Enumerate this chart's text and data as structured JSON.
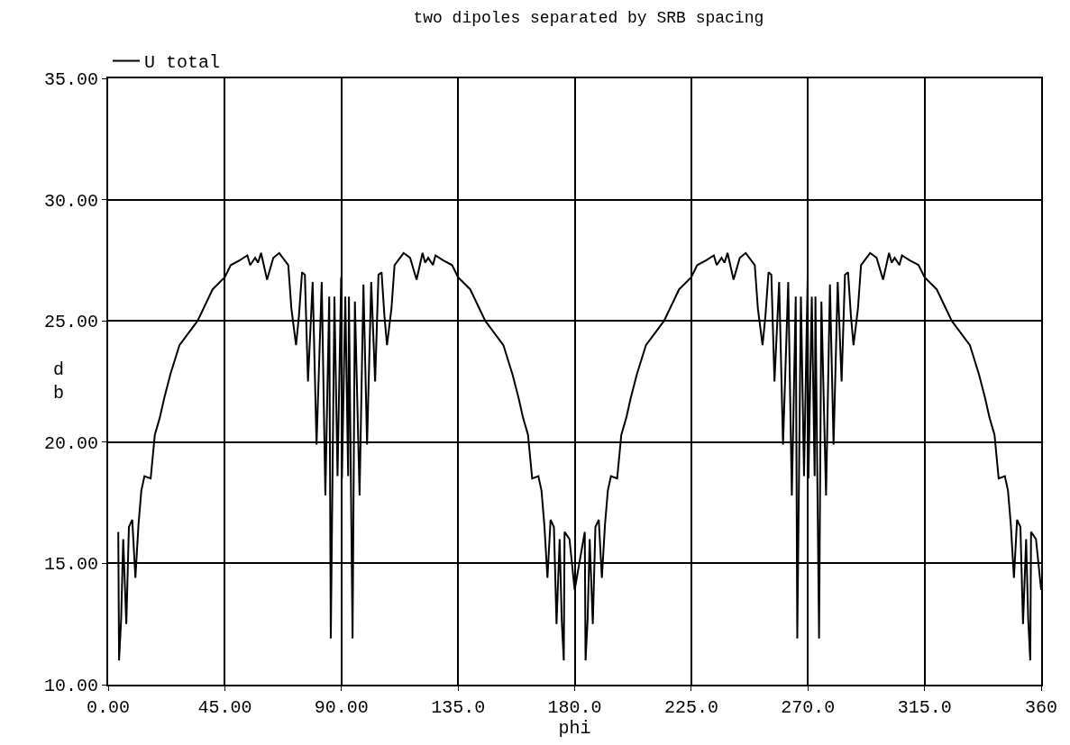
{
  "chart_data": {
    "type": "line",
    "title": "two dipoles separated by SRB spacing",
    "xlabel": "phi",
    "ylabel": "db",
    "xlim": [
      0,
      360
    ],
    "ylim": [
      10,
      35
    ],
    "xticks": [
      {
        "value": 0,
        "label": "0.00"
      },
      {
        "value": 45,
        "label": "45.00"
      },
      {
        "value": 90,
        "label": "90.00"
      },
      {
        "value": 135,
        "label": "135.0"
      },
      {
        "value": 180,
        "label": "180.0"
      },
      {
        "value": 225,
        "label": "225.0"
      },
      {
        "value": 270,
        "label": "270.0"
      },
      {
        "value": 315,
        "label": "315.0"
      },
      360
    ],
    "yticks": [
      {
        "value": 10,
        "label": "10.00"
      },
      {
        "value": 15,
        "label": "15.00"
      },
      {
        "value": 20,
        "label": "20.00"
      },
      {
        "value": 25,
        "label": "25.00"
      },
      {
        "value": 30,
        "label": "30.00"
      },
      {
        "value": 35,
        "label": "35.00"
      }
    ],
    "grid": true,
    "legend": "top left",
    "marker": "none",
    "line_style": "solid",
    "x": [
      3.9,
      4.2,
      5,
      5.8,
      7,
      8,
      9.3,
      10.5,
      11.7,
      12.8,
      14,
      16.4,
      18,
      19.9,
      21.6,
      24,
      27.5,
      34.5,
      40.3,
      45,
      47.3,
      50.8,
      53.7,
      54.8,
      56.7,
      57.8,
      59,
      61.3,
      63.7,
      66,
      69.5,
      70.7,
      72.5,
      73.6,
      74.8,
      75.9,
      77.1,
      78.9,
      80.4,
      82.4,
      83.8,
      85.3,
      85.9,
      87.3,
      88.5,
      89.9,
      90.2,
      91.5,
      92.6,
      92.9,
      94.3,
      95.2,
      97,
      98.5,
      99.9,
      101.5,
      103,
      104.3,
      105.5,
      106.6,
      107.6,
      109.3,
      110.5,
      114,
      116.5,
      119,
      121.3,
      122.3,
      123.5,
      125.3,
      126.3,
      129.2,
      132.7,
      135,
      139.7,
      145.5,
      152.5,
      156,
      158.4,
      160.1,
      162,
      163.6,
      166,
      167.2,
      168.3,
      169.5,
      170.7,
      172,
      173,
      174.2,
      175,
      175.8,
      176.1,
      178,
      180,
      183.9,
      184.2,
      185,
      185.8,
      187,
      188,
      189.3,
      190.5,
      191.7,
      192.8,
      194,
      196.4,
      198,
      199.9,
      201.6,
      204,
      207.5,
      214.5,
      220.3,
      225,
      227.3,
      230.8,
      233.7,
      234.8,
      236.7,
      237.8,
      239,
      241.3,
      243.7,
      246,
      249.5,
      250.7,
      252.5,
      253.6,
      254.8,
      255.9,
      257.1,
      258.9,
      260.4,
      262.4,
      263.8,
      265.3,
      265.9,
      267.3,
      268.5,
      269.9,
      270.2,
      271.5,
      272.6,
      272.9,
      274.3,
      275.2,
      277,
      278.5,
      279.9,
      281.5,
      283,
      284.3,
      285.5,
      286.6,
      287.6,
      289.3,
      290.5,
      294,
      296.5,
      299,
      301.3,
      302.3,
      303.5,
      305.3,
      306.3,
      309.2,
      312.7,
      315,
      319.7,
      325.5,
      332.5,
      336,
      338.4,
      340.1,
      342,
      343.6,
      346,
      347.2,
      348.3,
      349.5,
      350.7,
      352,
      353,
      354.2,
      355,
      355.8,
      356.1,
      358,
      360
    ],
    "series": [
      {
        "name": "U total",
        "color": "#000000",
        "values": [
          16.3,
          11.0,
          12.7,
          16.0,
          12.5,
          16.5,
          16.8,
          14.4,
          16.6,
          18.0,
          18.6,
          18.5,
          20.3,
          21.0,
          21.8,
          22.8,
          24.0,
          25.0,
          26.3,
          26.8,
          27.3,
          27.5,
          27.7,
          27.3,
          27.6,
          27.4,
          27.8,
          26.7,
          27.6,
          27.8,
          27.3,
          25.5,
          24.0,
          25.2,
          27.0,
          26.9,
          22.5,
          26.6,
          19.9,
          26.6,
          17.8,
          26.0,
          11.9,
          26.0,
          18.6,
          26.8,
          18.5,
          26.0,
          18.6,
          26.0,
          11.9,
          25.8,
          17.8,
          26.5,
          19.9,
          26.6,
          22.5,
          26.9,
          27.0,
          25.2,
          24.0,
          25.5,
          27.3,
          27.8,
          27.6,
          26.7,
          27.8,
          27.4,
          27.6,
          27.3,
          27.7,
          27.5,
          27.3,
          26.8,
          26.3,
          25.0,
          24.0,
          22.8,
          21.8,
          21.0,
          20.3,
          18.5,
          18.6,
          18.0,
          16.6,
          14.4,
          16.8,
          16.5,
          12.5,
          16.0,
          12.7,
          11.0,
          16.3,
          16.0,
          13.9,
          16.3,
          11.0,
          12.7,
          16.0,
          12.5,
          16.5,
          16.8,
          14.4,
          16.6,
          18.0,
          18.6,
          18.5,
          20.3,
          21.0,
          21.8,
          22.8,
          24.0,
          25.0,
          26.3,
          26.8,
          27.3,
          27.5,
          27.7,
          27.3,
          27.6,
          27.4,
          27.8,
          26.7,
          27.6,
          27.8,
          27.3,
          25.5,
          24.0,
          25.2,
          27.0,
          26.9,
          22.5,
          26.6,
          19.9,
          26.6,
          17.8,
          26.0,
          11.9,
          26.0,
          18.6,
          26.8,
          18.5,
          26.0,
          18.6,
          26.0,
          11.9,
          25.8,
          17.8,
          26.5,
          19.9,
          26.6,
          22.5,
          26.9,
          27.0,
          25.2,
          24.0,
          25.5,
          27.3,
          27.8,
          27.6,
          26.7,
          27.8,
          27.4,
          27.6,
          27.3,
          27.7,
          27.5,
          27.3,
          26.8,
          26.3,
          25.0,
          24.0,
          22.8,
          21.8,
          21.0,
          20.3,
          18.5,
          18.6,
          18.0,
          16.6,
          14.4,
          16.8,
          16.5,
          12.5,
          16.0,
          12.7,
          11.0,
          16.3,
          16.0,
          13.9
        ]
      }
    ]
  }
}
